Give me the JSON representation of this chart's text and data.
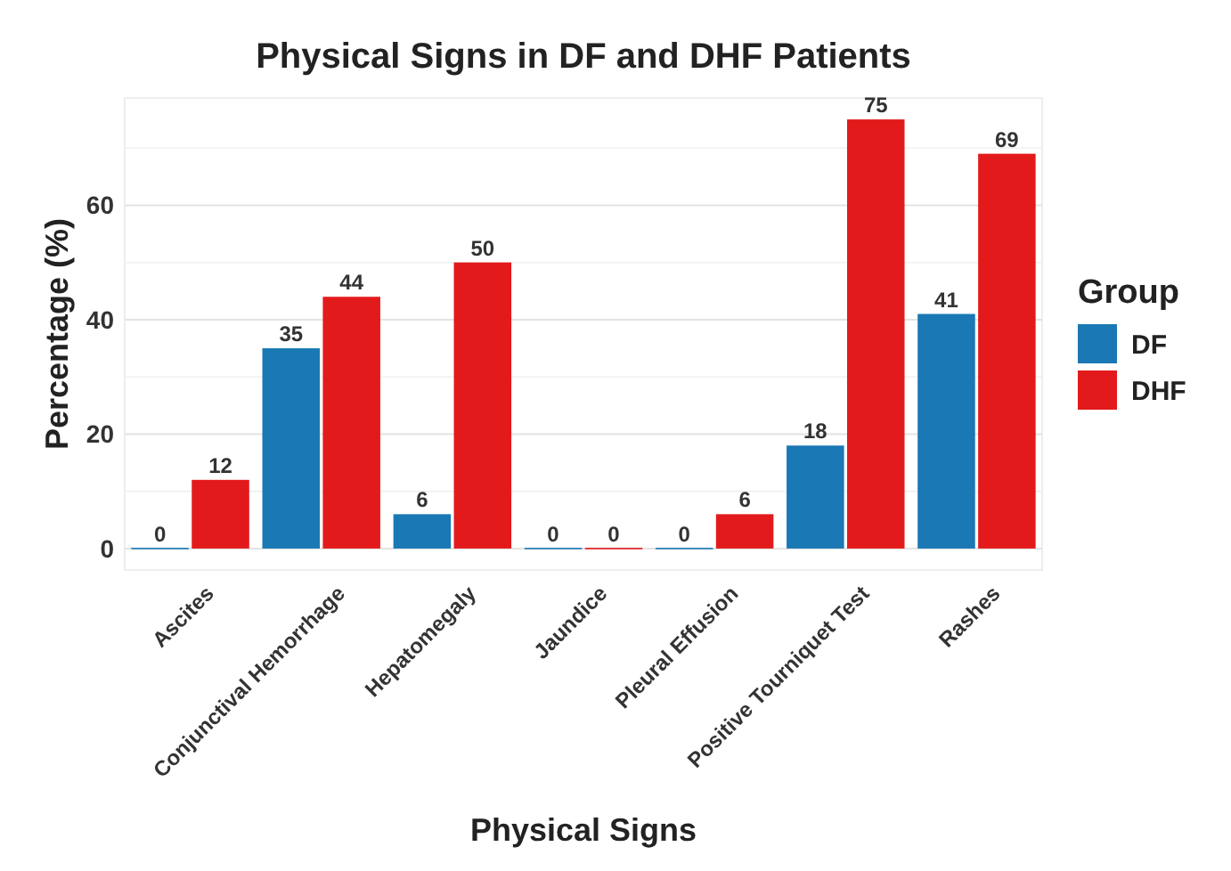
{
  "chart_data": {
    "type": "bar",
    "title": "Physical Signs in DF and DHF Patients",
    "xlabel": "Physical Signs",
    "ylabel": "Percentage (%)",
    "legend_title": "Group",
    "categories": [
      "Ascites",
      "Conjunctival Hemorrhage",
      "Hepatomegaly",
      "Jaundice",
      "Pleural Effusion",
      "Positive Tourniquet Test",
      "Rashes"
    ],
    "series": [
      {
        "name": "DF",
        "color": "#1a78b4",
        "values": [
          0,
          35,
          6,
          0,
          0,
          18,
          41
        ]
      },
      {
        "name": "DHF",
        "color": "#e31a1c",
        "values": [
          12,
          44,
          50,
          0,
          6,
          75,
          69
        ]
      }
    ],
    "ylim": [
      -3.75,
      78.75
    ],
    "yticks": [
      0,
      20,
      40,
      60
    ],
    "grid": "y",
    "legend": "right",
    "data_labels": true
  }
}
